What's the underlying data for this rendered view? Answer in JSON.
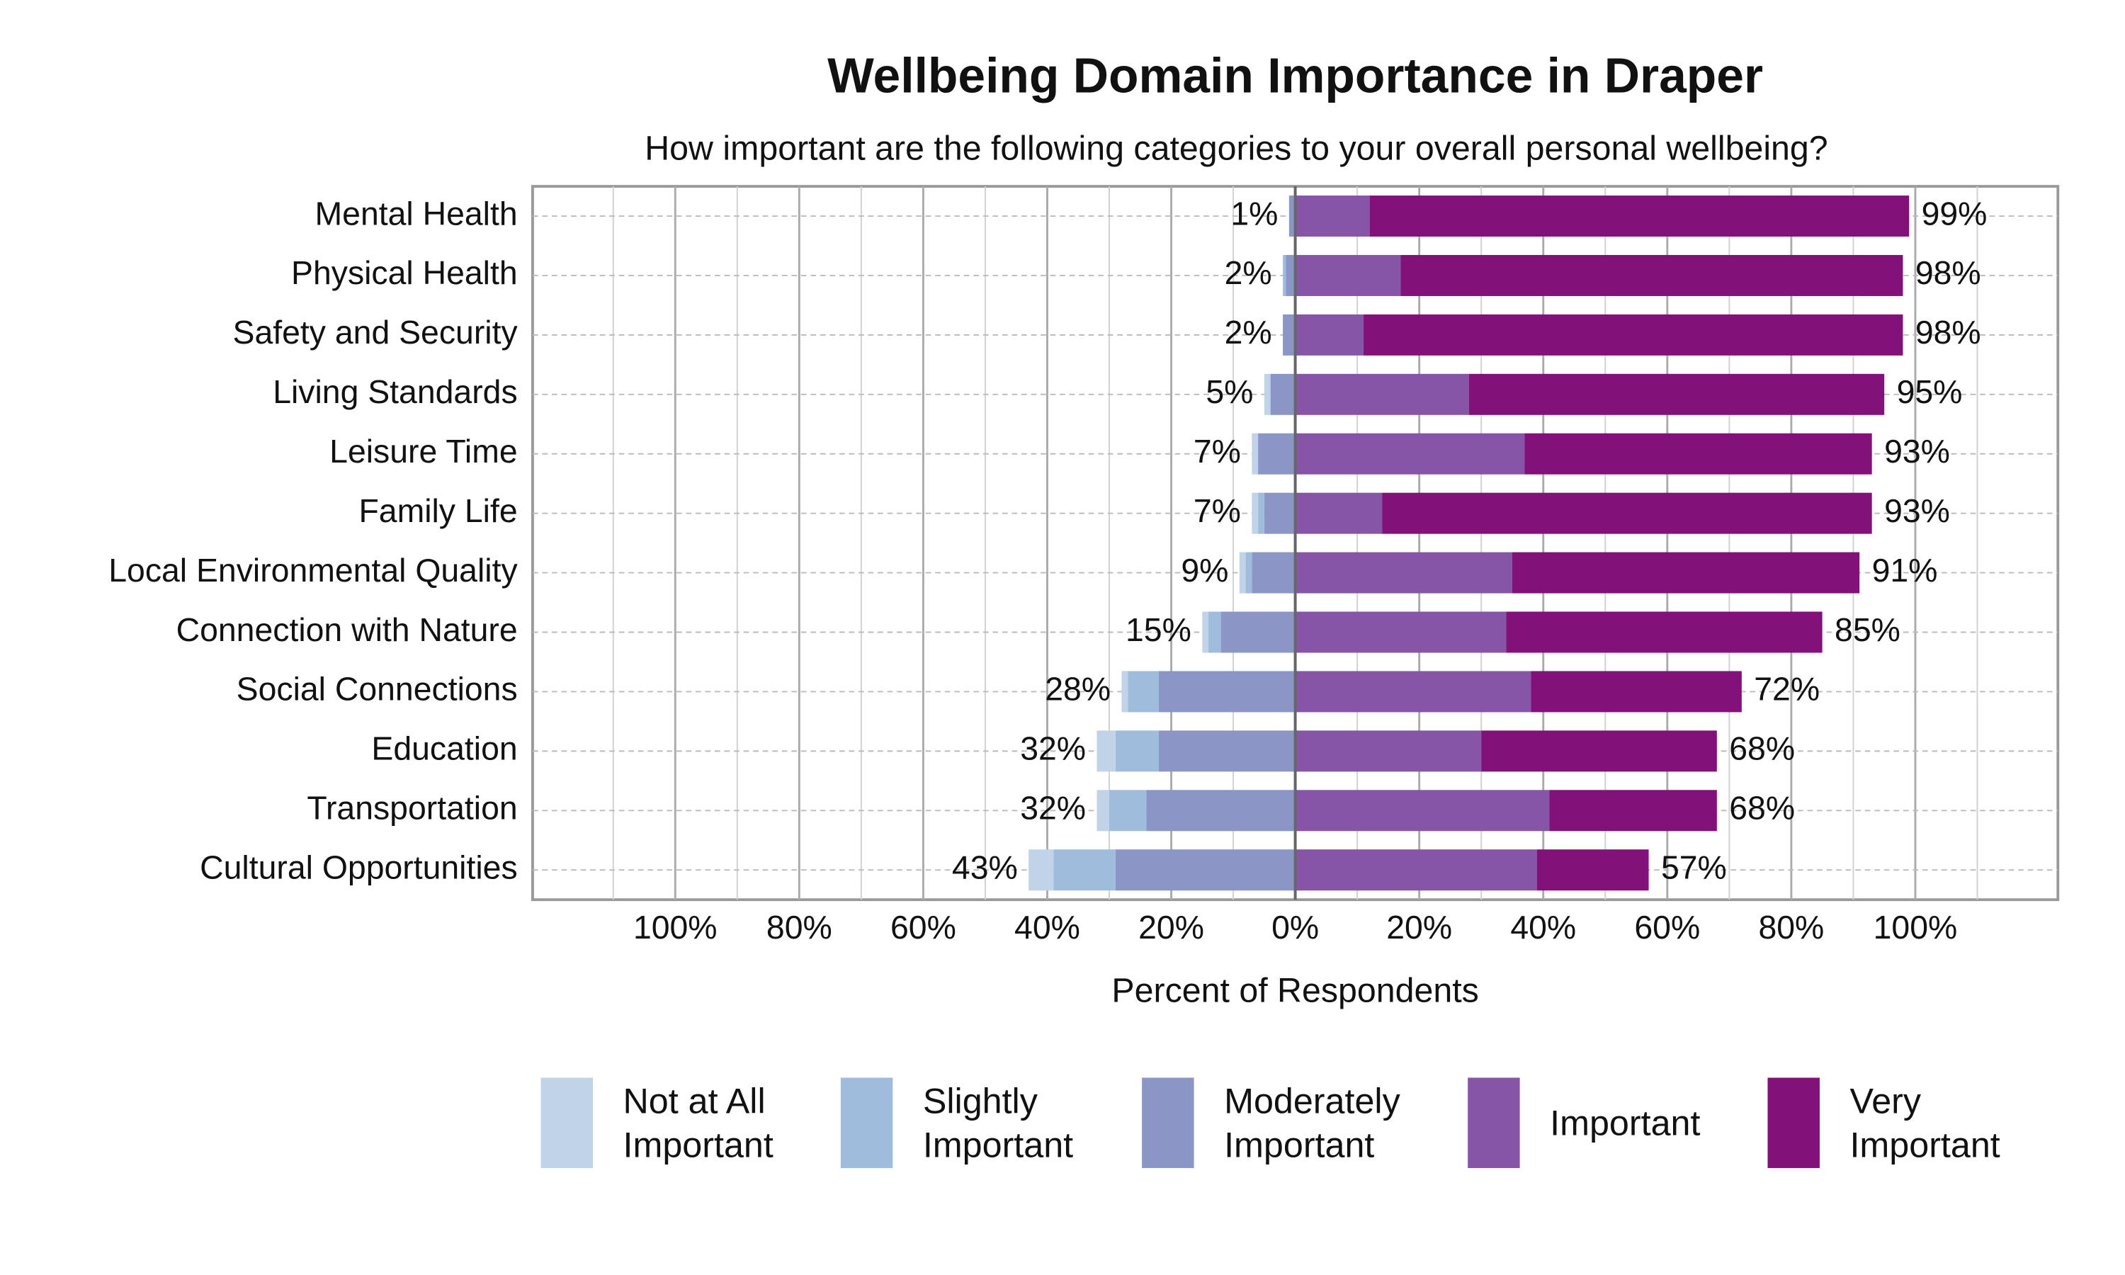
{
  "chart_data": {
    "type": "diverging-bar",
    "title": "Wellbeing Domain Importance in Draper",
    "subtitle": "How important are the following categories to your overall personal wellbeing?",
    "x_label": "Percent of Respondents",
    "categories": [
      "Mental Health",
      "Physical Health",
      "Safety and Security",
      "Living Standards",
      "Leisure Time",
      "Family Life",
      "Local Environmental Quality",
      "Connection with Nature",
      "Social Connections",
      "Education",
      "Transportation",
      "Cultural Opportunities"
    ],
    "series": [
      {
        "name": "Not at All Important",
        "color": "#c0d3e7",
        "values": [
          0,
          0,
          0,
          1,
          1,
          1,
          1,
          1,
          1,
          3,
          2,
          4
        ]
      },
      {
        "name": "Slightly Important",
        "color": "#9fbcdc",
        "values": [
          0,
          0.5,
          0,
          0,
          0,
          1,
          1,
          2,
          5,
          7,
          6,
          10
        ]
      },
      {
        "name": "Moderately Important",
        "color": "#8b96c7",
        "values": [
          1,
          1.5,
          2,
          4,
          6,
          5,
          7,
          12,
          22,
          22,
          24,
          29
        ]
      },
      {
        "name": "Important",
        "color": "#8755a8",
        "values": [
          12,
          17,
          11,
          28,
          37,
          14,
          35,
          34,
          38,
          30,
          41,
          39
        ]
      },
      {
        "name": "Very Important",
        "color": "#82117a",
        "values": [
          87,
          81,
          87,
          67,
          56,
          79,
          56,
          51,
          34,
          38,
          27,
          18
        ]
      }
    ],
    "left_totals": [
      1,
      2,
      2,
      5,
      7,
      7,
      9,
      15,
      28,
      32,
      32,
      43
    ],
    "left_total_labels": [
      "1%",
      "2%",
      "2%",
      "5%",
      "7%",
      "7%",
      "9%",
      "15%",
      "28%",
      "32%",
      "32%",
      "43%"
    ],
    "right_totals": [
      99,
      98,
      98,
      95,
      93,
      93,
      91,
      85,
      72,
      68,
      68,
      57
    ],
    "right_total_labels": [
      "99%",
      "98%",
      "98%",
      "95%",
      "93%",
      "93%",
      "91%",
      "85%",
      "72%",
      "68%",
      "68%",
      "57%"
    ],
    "xlim": [
      -123,
      123
    ],
    "xticks": [
      {
        "value": -100,
        "label": "100%"
      },
      {
        "value": -80,
        "label": "80%"
      },
      {
        "value": -60,
        "label": "60%"
      },
      {
        "value": -40,
        "label": "40%"
      },
      {
        "value": -20,
        "label": "20%"
      },
      {
        "value": 0,
        "label": "0%"
      },
      {
        "value": 20,
        "label": "20%"
      },
      {
        "value": 40,
        "label": "40%"
      },
      {
        "value": 60,
        "label": "60%"
      },
      {
        "value": 80,
        "label": "80%"
      },
      {
        "value": 100,
        "label": "100%"
      }
    ],
    "x_minor_grid": [
      -110,
      -90,
      -70,
      -50,
      -30,
      -10,
      10,
      30,
      50,
      70,
      90,
      110
    ],
    "grid": true
  }
}
